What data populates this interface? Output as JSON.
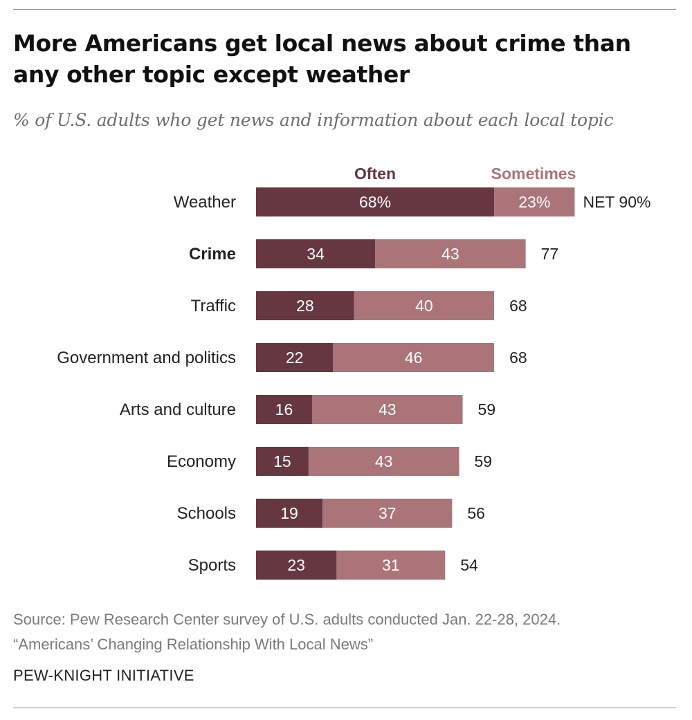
{
  "title": "More Americans get local news about crime than any other topic except weather",
  "subtitle": "% of U.S. adults who get news and information about each local topic",
  "source": {
    "line1": "Source: Pew Research Center survey of U.S. adults conducted Jan. 22-28, 2024.",
    "line2": "“Americans’ Changing Relationship With Local News”"
  },
  "organization": "PEW-KNIGHT INITIATIVE",
  "colors": {
    "often": "#663641",
    "sometimes": "#ab7478",
    "bar_text": "#ffffff"
  },
  "chart_data": {
    "type": "bar",
    "orientation": "horizontal",
    "stacked": true,
    "categories": [
      "Weather",
      "Crime",
      "Traffic",
      "Government and politics",
      "Arts and culture",
      "Economy",
      "Schools",
      "Sports"
    ],
    "highlight_category": "Crime",
    "series": [
      {
        "name": "Often",
        "values": [
          68,
          34,
          28,
          22,
          16,
          15,
          19,
          23
        ],
        "labels": [
          "68%",
          "34",
          "28",
          "22",
          "16",
          "15",
          "19",
          "23"
        ]
      },
      {
        "name": "Sometimes",
        "values": [
          23,
          43,
          40,
          46,
          43,
          43,
          37,
          31
        ],
        "labels": [
          "23%",
          "43",
          "40",
          "46",
          "43",
          "43",
          "37",
          "31"
        ]
      }
    ],
    "net_values": [
      90,
      77,
      68,
      68,
      59,
      59,
      56,
      54
    ],
    "net_labels": [
      "NET 90%",
      "77",
      "68",
      "68",
      "59",
      "59",
      "56",
      "54"
    ],
    "legend": "top",
    "grid": false,
    "xlim": [
      0,
      100
    ]
  }
}
